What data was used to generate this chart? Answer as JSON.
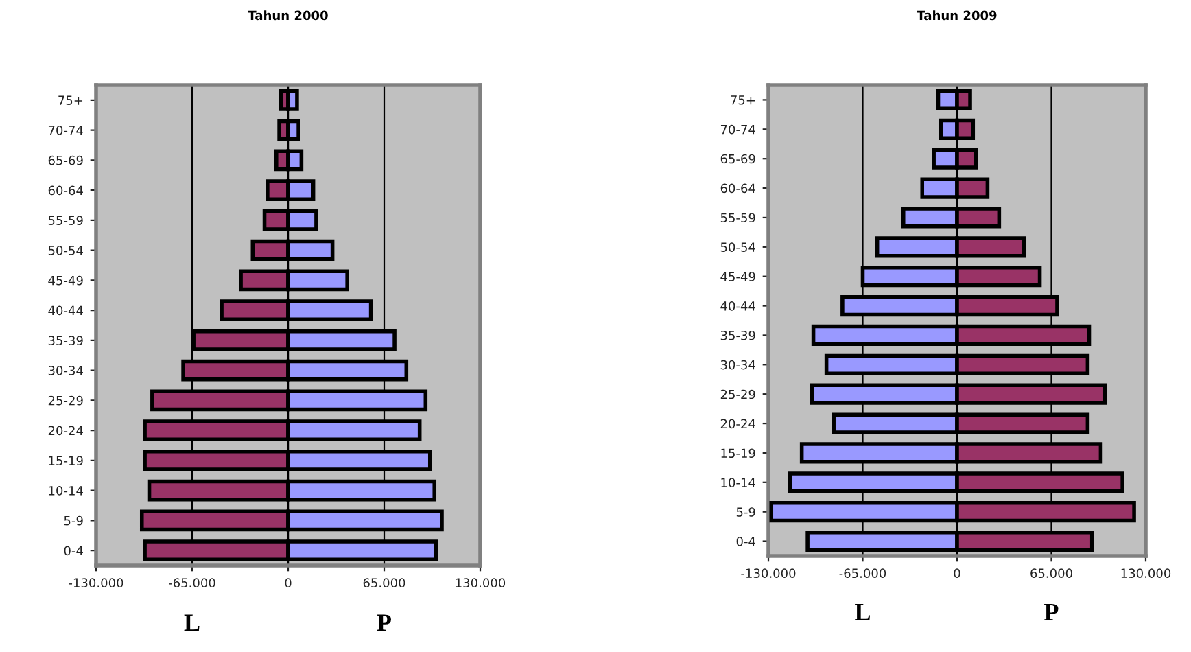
{
  "chart_data": [
    {
      "type": "bar",
      "title": "Tahun 2000",
      "orientation": "horizontal",
      "stacked": true,
      "grid": "x",
      "categories": [
        "75+",
        "70-74",
        "65-69",
        "60-64",
        "55-59",
        "50-54",
        "45-49",
        "40-44",
        "35-39",
        "30-34",
        "25-29",
        "20-24",
        "15-19",
        "10-14",
        "5-9",
        "0-4"
      ],
      "series": [
        {
          "name": "L",
          "color": "#993366",
          "values": [
            -5000,
            -6000,
            -8000,
            -14000,
            -16000,
            -24000,
            -32000,
            -45000,
            -64000,
            -71000,
            -92000,
            -97000,
            -97000,
            -94000,
            -99000,
            -97000
          ]
        },
        {
          "name": "P",
          "color": "#9999ff",
          "values": [
            6000,
            7000,
            9000,
            17000,
            19000,
            30000,
            40000,
            56000,
            72000,
            80000,
            93000,
            89000,
            96000,
            99000,
            104000,
            100000
          ]
        }
      ],
      "xlim": [
        -130000,
        130000
      ],
      "xticks": [
        {
          "value": -130000,
          "label": "-130.000"
        },
        {
          "value": -65000,
          "label": "-65.000"
        },
        0,
        {
          "value": 65000,
          "label": "65.000"
        },
        {
          "value": 130000,
          "label": "130.000"
        }
      ]
    },
    {
      "type": "bar",
      "title": "Tahun 2009",
      "orientation": "horizontal",
      "stacked": true,
      "grid": "x",
      "categories": [
        "75+",
        "70-74",
        "65-69",
        "60-64",
        "55-59",
        "50-54",
        "45-49",
        "40-44",
        "35-39",
        "30-34",
        "25-29",
        "20-24",
        "15-19",
        "10-14",
        "5-9",
        "0-4"
      ],
      "series": [
        {
          "name": "L",
          "color": "#9999ff",
          "values": [
            -13000,
            -11000,
            -16000,
            -24000,
            -37000,
            -55000,
            -65000,
            -79000,
            -99000,
            -90000,
            -100000,
            -85000,
            -107000,
            -115000,
            -128000,
            -103000
          ]
        },
        {
          "name": "P",
          "color": "#993366",
          "values": [
            9000,
            11000,
            13000,
            21000,
            29000,
            46000,
            57000,
            69000,
            91000,
            90000,
            102000,
            90000,
            99000,
            114000,
            122000,
            93000
          ]
        }
      ],
      "xlim": [
        -130000,
        130000
      ],
      "xticks": [
        {
          "value": -130000,
          "label": "-130.000"
        },
        {
          "value": -65000,
          "label": "-65.000"
        },
        0,
        {
          "value": 65000,
          "label": "65.000"
        },
        {
          "value": 130000,
          "label": "130.000"
        }
      ]
    }
  ]
}
